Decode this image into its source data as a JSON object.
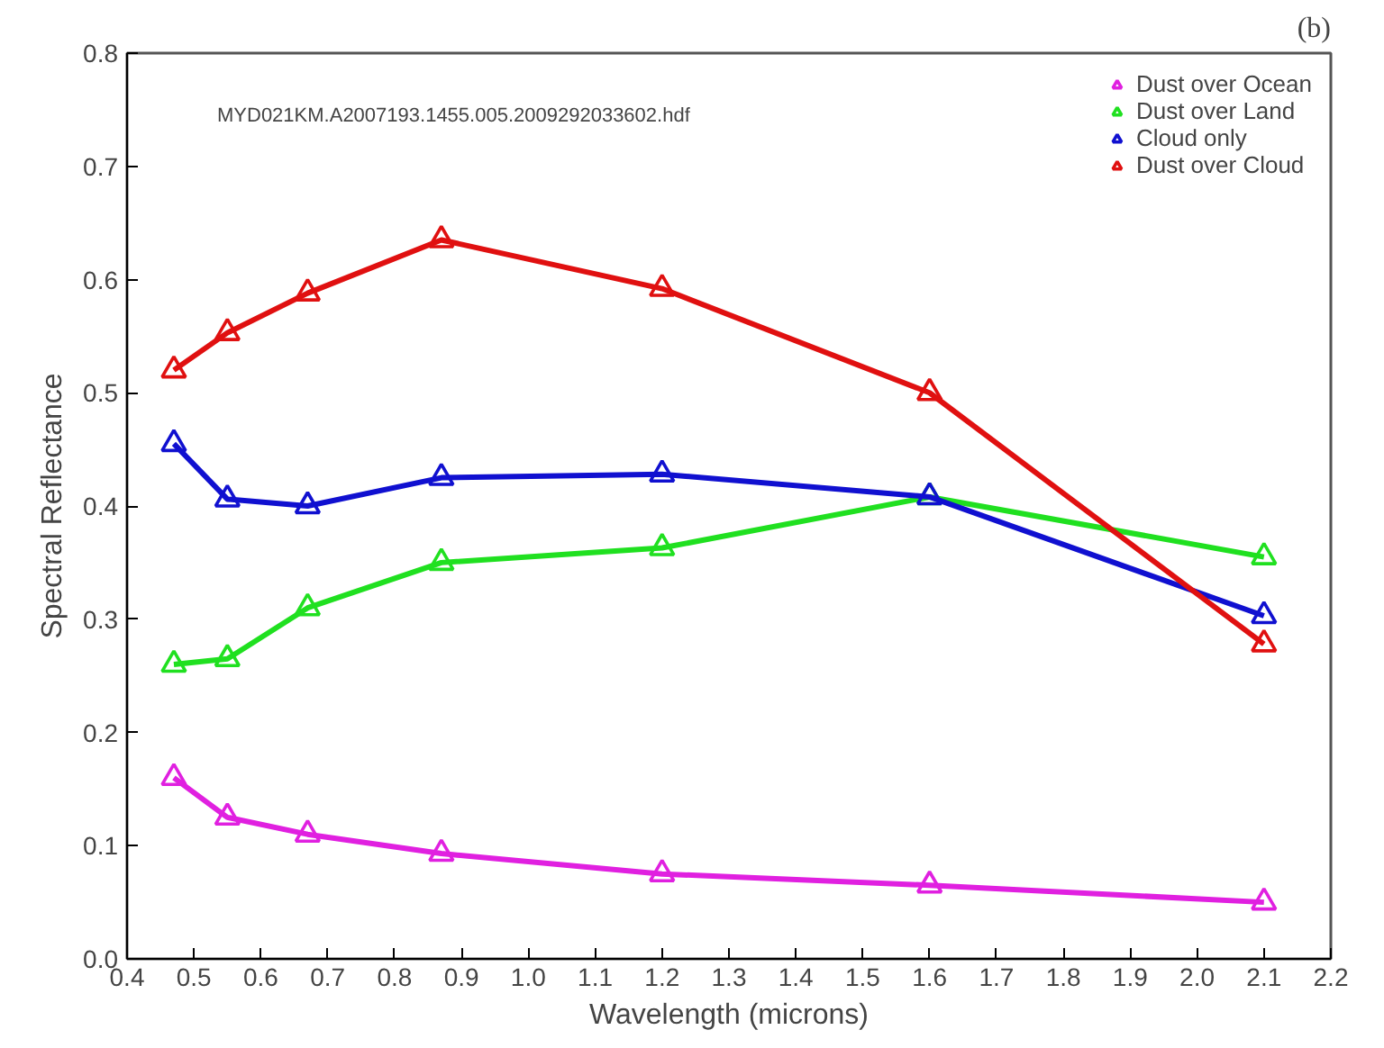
{
  "chart_data": {
    "type": "line",
    "title": "(b)",
    "xlabel": "Wavelength (microns)",
    "ylabel": "Spectral Reflectance",
    "annotations": [
      "MYD021KM.A2007193.1455.005.2009292033602.hdf"
    ],
    "x": [
      0.47,
      0.55,
      0.67,
      0.87,
      1.2,
      1.6,
      2.1
    ],
    "series": [
      {
        "name": "Dust over Ocean",
        "color": "#e020e0",
        "values": [
          0.16,
          0.125,
          0.11,
          0.093,
          0.075,
          0.065,
          0.05
        ]
      },
      {
        "name": "Dust over Land",
        "color": "#20e020",
        "values": [
          0.26,
          0.265,
          0.31,
          0.35,
          0.363,
          0.408,
          0.355
        ]
      },
      {
        "name": "Cloud only",
        "color": "#1010d0",
        "values": [
          0.455,
          0.406,
          0.4,
          0.425,
          0.428,
          0.408,
          0.303
        ]
      },
      {
        "name": "Dust over Cloud",
        "color": "#e01010",
        "values": [
          0.52,
          0.553,
          0.588,
          0.635,
          0.592,
          0.5,
          0.278
        ]
      }
    ],
    "xlim": [
      0.4,
      2.2
    ],
    "ylim": [
      0.0,
      0.8
    ],
    "xticks": [
      0.4,
      0.5,
      0.6,
      0.7,
      0.8,
      0.9,
      {
        "value": 1.0,
        "label": "1.0"
      },
      1.1,
      1.2,
      1.3,
      1.4,
      1.5,
      1.6,
      1.7,
      1.8,
      1.9,
      {
        "value": 2.0,
        "label": "2.0"
      },
      2.1,
      2.2
    ],
    "yticks": [
      {
        "value": 0.0,
        "label": "0.0"
      },
      0.1,
      0.2,
      0.3,
      0.4,
      0.5,
      0.6,
      0.7,
      0.8
    ],
    "grid": false,
    "legend": "top right",
    "marker": "triangle",
    "line_style": "solid"
  }
}
